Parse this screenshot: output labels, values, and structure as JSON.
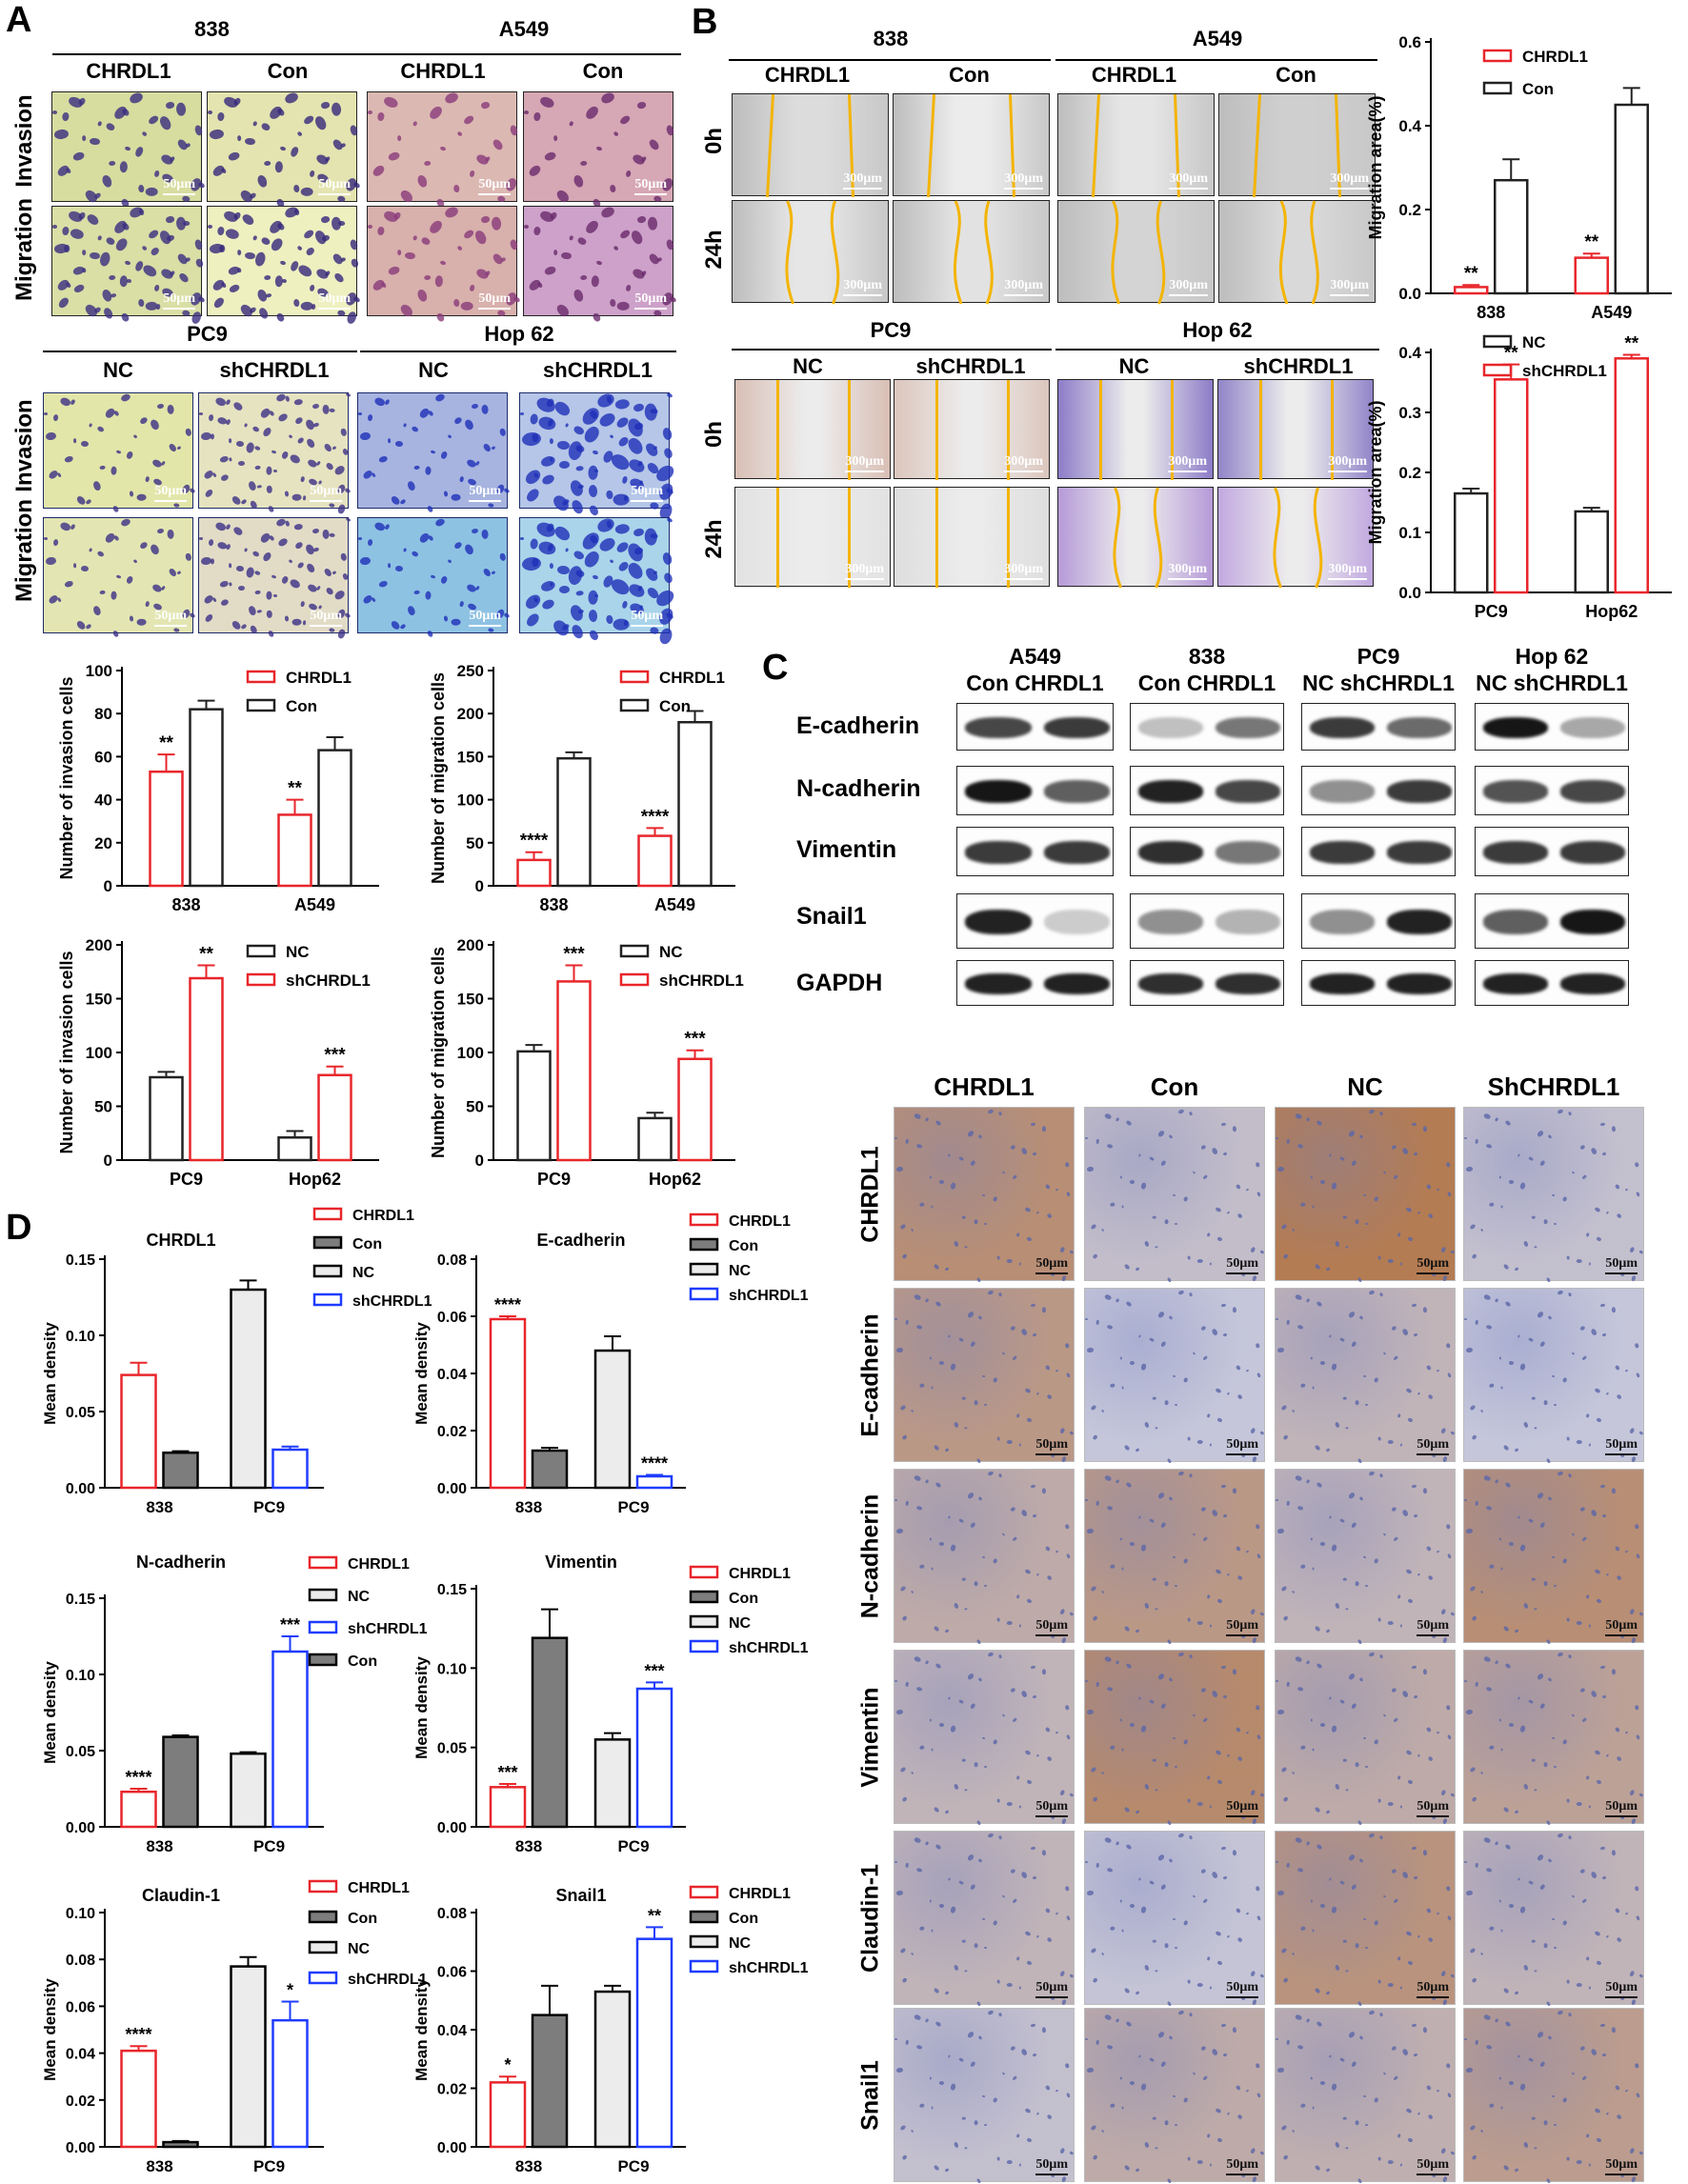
{
  "panels": {
    "a": "A",
    "b": "B",
    "c": "C",
    "d": "D"
  },
  "colors": {
    "red": "#e8262b",
    "black": "#222222",
    "gray": "#7d7d7d",
    "lightgray": "#ececec",
    "blue": "#1f3cff",
    "orange": "#f4b400"
  },
  "a": {
    "lines": [
      "838",
      "A549",
      "PC9",
      "Hop 62"
    ],
    "top_cols": [
      "CHRDL1",
      "Con",
      "CHRDL1",
      "Con"
    ],
    "bot_cols": [
      "NC",
      "shCHRDL1",
      "NC",
      "shCHRDL1"
    ],
    "rows": [
      "Invasion",
      "Migration",
      "Invasion",
      "Migration"
    ],
    "scale": "50μm"
  },
  "b": {
    "lines": [
      "838",
      "A549",
      "PC9",
      "Hop 62"
    ],
    "top_cols": [
      "CHRDL1",
      "Con",
      "CHRDL1",
      "Con"
    ],
    "bot_cols": [
      "NC",
      "shCHRDL1",
      "NC",
      "shCHRDL1"
    ],
    "rows": [
      "0h",
      "24h",
      "0h",
      "24h"
    ],
    "scale": "300μm"
  },
  "c": {
    "groups": [
      {
        "title": "A549",
        "sub": "Con CHRDL1"
      },
      {
        "title": "838",
        "sub": "Con CHRDL1"
      },
      {
        "title": "PC9",
        "sub": "NC shCHRDL1"
      },
      {
        "title": "Hop 62",
        "sub": "NC shCHRDL1"
      }
    ],
    "proteins": [
      "E-cadherin",
      "N-cadherin",
      "Vimentin",
      "Snail1",
      "GAPDH"
    ]
  },
  "ihc": {
    "cols": [
      "CHRDL1",
      "Con",
      "NC",
      "ShCHRDL1"
    ],
    "rows": [
      "CHRDL1",
      "E-cadherin",
      "N-cadherin",
      "Vimentin",
      "Claudin-1",
      "Snail1"
    ],
    "scale": "50μm"
  },
  "chart_data": [
    {
      "id": "b1",
      "type": "bar",
      "categories": [
        "838",
        "A549"
      ],
      "ylabel": "Migration area(%)",
      "ylim": [
        0,
        0.6
      ],
      "ticks": [
        0.0,
        0.2,
        0.4,
        0.6
      ],
      "tick_labels": [
        "0.0",
        "0.2",
        "0.4",
        "0.6"
      ],
      "legend_position": "top-left",
      "series": [
        {
          "name": "CHRDL1",
          "color": "red",
          "values": [
            0.015,
            0.085
          ],
          "errors": [
            0.005,
            0.01
          ],
          "sig": [
            "**",
            "**"
          ]
        },
        {
          "name": "Con",
          "color": "black",
          "values": [
            0.27,
            0.45
          ],
          "errors": [
            0.05,
            0.04
          ],
          "sig": [
            "",
            ""
          ]
        }
      ]
    },
    {
      "id": "b2",
      "type": "bar",
      "categories": [
        "PC9",
        "Hop62"
      ],
      "ylabel": "Migration area(%)",
      "ylim": [
        0,
        0.4
      ],
      "ticks": [
        0.0,
        0.1,
        0.2,
        0.3,
        0.4
      ],
      "tick_labels": [
        "0.0",
        "0.1",
        "0.2",
        "0.3",
        "0.4"
      ],
      "legend_position": "top-left",
      "series": [
        {
          "name": "NC",
          "color": "black",
          "values": [
            0.165,
            0.135
          ],
          "errors": [
            0.008,
            0.006
          ],
          "sig": [
            "",
            ""
          ]
        },
        {
          "name": "shCHRDL1",
          "color": "red",
          "values": [
            0.355,
            0.39
          ],
          "errors": [
            0.025,
            0.006
          ],
          "sig": [
            "**",
            "**"
          ]
        }
      ]
    },
    {
      "id": "a1",
      "type": "bar",
      "categories": [
        "838",
        "A549"
      ],
      "ylabel": "Number of invasion cells",
      "ylim": [
        0,
        100
      ],
      "ticks": [
        0,
        20,
        40,
        60,
        80,
        100
      ],
      "tick_labels": [
        "0",
        "20",
        "40",
        "60",
        "80",
        "100"
      ],
      "legend_position": "top-right",
      "series": [
        {
          "name": "CHRDL1",
          "color": "red",
          "values": [
            53,
            33
          ],
          "errors": [
            8,
            7
          ],
          "sig": [
            "**",
            "**"
          ]
        },
        {
          "name": "Con",
          "color": "black",
          "values": [
            82,
            63
          ],
          "errors": [
            4,
            6
          ],
          "sig": [
            "",
            ""
          ]
        }
      ]
    },
    {
      "id": "a2",
      "type": "bar",
      "categories": [
        "838",
        "A549"
      ],
      "ylabel": "Number of migration cells",
      "ylim": [
        0,
        250
      ],
      "ticks": [
        0,
        50,
        100,
        150,
        200,
        250
      ],
      "tick_labels": [
        "0",
        "50",
        "100",
        "150",
        "200",
        "250"
      ],
      "legend_position": "top-right",
      "series": [
        {
          "name": "CHRDL1",
          "color": "red",
          "values": [
            30,
            58
          ],
          "errors": [
            9,
            9
          ],
          "sig": [
            "****",
            "****"
          ]
        },
        {
          "name": "Con",
          "color": "black",
          "values": [
            148,
            190
          ],
          "errors": [
            7,
            13
          ],
          "sig": [
            "",
            ""
          ]
        }
      ]
    },
    {
      "id": "a3",
      "type": "bar",
      "categories": [
        "PC9",
        "Hop62"
      ],
      "ylabel": "Number of invasion cells",
      "ylim": [
        0,
        200
      ],
      "ticks": [
        0,
        50,
        100,
        150,
        200
      ],
      "tick_labels": [
        "0",
        "50",
        "100",
        "150",
        "200"
      ],
      "legend_position": "top-right",
      "series": [
        {
          "name": "NC",
          "color": "black",
          "values": [
            77,
            21
          ],
          "errors": [
            5,
            6
          ],
          "sig": [
            "",
            ""
          ]
        },
        {
          "name": "shCHRDL1",
          "color": "red",
          "values": [
            169,
            79
          ],
          "errors": [
            12,
            8
          ],
          "sig": [
            "**",
            "***"
          ]
        }
      ]
    },
    {
      "id": "a4",
      "type": "bar",
      "categories": [
        "PC9",
        "Hop62"
      ],
      "ylabel": "Number of migration cells",
      "ylim": [
        0,
        200
      ],
      "ticks": [
        0,
        50,
        100,
        150,
        200
      ],
      "tick_labels": [
        "0",
        "50",
        "100",
        "150",
        "200"
      ],
      "legend_position": "top-right",
      "series": [
        {
          "name": "NC",
          "color": "black",
          "values": [
            101,
            39
          ],
          "errors": [
            6,
            5
          ],
          "sig": [
            "",
            ""
          ]
        },
        {
          "name": "shCHRDL1",
          "color": "red",
          "values": [
            166,
            94
          ],
          "errors": [
            15,
            8
          ],
          "sig": [
            "***",
            "***"
          ]
        }
      ]
    },
    {
      "id": "d1",
      "type": "bar",
      "title": "CHRDL1",
      "categories": [
        "838",
        "PC9"
      ],
      "ylabel": "Mean density",
      "ylim": [
        0,
        0.15
      ],
      "ticks": [
        0,
        0.05,
        0.1,
        0.15
      ],
      "tick_labels": [
        "0.00",
        "0.05",
        "0.10",
        "0.15"
      ],
      "legend_position": "top-right",
      "series": [
        {
          "name": "CHRDL1",
          "color": "red",
          "slot": 0,
          "values": [
            0.074,
            null
          ],
          "errors": [
            0.008,
            null
          ],
          "sig": [
            "",
            ""
          ]
        },
        {
          "name": "Con",
          "color": "gray",
          "slot": 1,
          "values": [
            0.023,
            null
          ],
          "errors": [
            0.001,
            null
          ],
          "sig": [
            "",
            ""
          ]
        },
        {
          "name": "NC",
          "color": "lightgray",
          "slot": 0,
          "values": [
            null,
            0.13
          ],
          "errors": [
            null,
            0.006
          ],
          "sig": [
            "",
            ""
          ]
        },
        {
          "name": "shCHRDL1",
          "color": "blue",
          "slot": 1,
          "values": [
            null,
            0.025
          ],
          "errors": [
            null,
            0.002
          ],
          "sig": [
            "",
            ""
          ]
        }
      ]
    },
    {
      "id": "d2",
      "type": "bar",
      "title": "E-cadherin",
      "categories": [
        "838",
        "PC9"
      ],
      "ylabel": "Mean density",
      "ylim": [
        0,
        0.08
      ],
      "ticks": [
        0,
        0.02,
        0.04,
        0.06,
        0.08
      ],
      "tick_labels": [
        "0.00",
        "0.02",
        "0.04",
        "0.06",
        "0.08"
      ],
      "legend_position": "top-right",
      "series": [
        {
          "name": "CHRDL1",
          "color": "red",
          "slot": 0,
          "values": [
            0.059,
            null
          ],
          "errors": [
            0.001,
            null
          ],
          "sig": [
            "****",
            ""
          ]
        },
        {
          "name": "Con",
          "color": "gray",
          "slot": 1,
          "values": [
            0.013,
            null
          ],
          "errors": [
            0.001,
            null
          ],
          "sig": [
            "",
            ""
          ]
        },
        {
          "name": "NC",
          "color": "lightgray",
          "slot": 0,
          "values": [
            null,
            0.048
          ],
          "errors": [
            null,
            0.005
          ],
          "sig": [
            "",
            ""
          ]
        },
        {
          "name": "shCHRDL1",
          "color": "blue",
          "slot": 1,
          "values": [
            null,
            0.004
          ],
          "errors": [
            null,
            0.0005
          ],
          "sig": [
            "",
            "****"
          ]
        }
      ]
    },
    {
      "id": "d3",
      "type": "bar",
      "title": "N-cadherin",
      "categories": [
        "838",
        "PC9"
      ],
      "ylabel": "Mean density",
      "ylim": [
        0,
        0.15
      ],
      "ticks": [
        0,
        0.05,
        0.1,
        0.15
      ],
      "tick_labels": [
        "0.00",
        "0.05",
        "0.10",
        "0.15"
      ],
      "legend_position": "top-right",
      "series": [
        {
          "name": "CHRDL1",
          "color": "red",
          "slot": 0,
          "values": [
            0.023,
            null
          ],
          "errors": [
            0.002,
            null
          ],
          "sig": [
            "****",
            ""
          ]
        },
        {
          "name": "NC",
          "color": "lightgray",
          "slot": 0,
          "values": [
            null,
            0.048
          ],
          "errors": [
            null,
            0.001
          ],
          "sig": [
            "",
            ""
          ]
        },
        {
          "name": "shCHRDL1",
          "color": "blue",
          "slot": 1,
          "values": [
            null,
            0.115
          ],
          "errors": [
            null,
            0.01
          ],
          "sig": [
            "",
            "***"
          ]
        },
        {
          "name": "Con",
          "color": "gray",
          "slot": 1,
          "values": [
            0.059,
            null
          ],
          "errors": [
            0.001,
            null
          ],
          "sig": [
            "",
            ""
          ]
        }
      ]
    },
    {
      "id": "d4",
      "type": "bar",
      "title": "Vimentin",
      "categories": [
        "838",
        "PC9"
      ],
      "ylabel": "Mean density",
      "ylim": [
        0,
        0.15
      ],
      "ticks": [
        0,
        0.05,
        0.1,
        0.15
      ],
      "tick_labels": [
        "0.00",
        "0.05",
        "0.10",
        "0.15"
      ],
      "legend_position": "top-right",
      "series": [
        {
          "name": "CHRDL1",
          "color": "red",
          "slot": 0,
          "values": [
            0.025,
            null
          ],
          "errors": [
            0.002,
            null
          ],
          "sig": [
            "***",
            ""
          ]
        },
        {
          "name": "Con",
          "color": "gray",
          "slot": 1,
          "values": [
            0.119,
            null
          ],
          "errors": [
            0.018,
            null
          ],
          "sig": [
            "",
            ""
          ]
        },
        {
          "name": "NC",
          "color": "lightgray",
          "slot": 0,
          "values": [
            null,
            0.055
          ],
          "errors": [
            null,
            0.004
          ],
          "sig": [
            "",
            ""
          ]
        },
        {
          "name": "shCHRDL1",
          "color": "blue",
          "slot": 1,
          "values": [
            null,
            0.087
          ],
          "errors": [
            null,
            0.004
          ],
          "sig": [
            "",
            "***"
          ]
        }
      ]
    },
    {
      "id": "d5",
      "type": "bar",
      "title": "Claudin-1",
      "categories": [
        "838",
        "PC9"
      ],
      "ylabel": "Mean density",
      "ylim": [
        0,
        0.1
      ],
      "ticks": [
        0,
        0.02,
        0.04,
        0.06,
        0.08,
        0.1
      ],
      "tick_labels": [
        "0.00",
        "0.02",
        "0.04",
        "0.06",
        "0.08",
        "0.10"
      ],
      "legend_position": "top-right",
      "series": [
        {
          "name": "CHRDL1",
          "color": "red",
          "slot": 0,
          "values": [
            0.041,
            null
          ],
          "errors": [
            0.002,
            null
          ],
          "sig": [
            "****",
            ""
          ]
        },
        {
          "name": "Con",
          "color": "gray",
          "slot": 1,
          "values": [
            0.002,
            null
          ],
          "errors": [
            0.0005,
            null
          ],
          "sig": [
            "",
            ""
          ]
        },
        {
          "name": "NC",
          "color": "lightgray",
          "slot": 0,
          "values": [
            null,
            0.077
          ],
          "errors": [
            null,
            0.004
          ],
          "sig": [
            "",
            ""
          ]
        },
        {
          "name": "shCHRDL1",
          "color": "blue",
          "slot": 1,
          "values": [
            null,
            0.054
          ],
          "errors": [
            null,
            0.008
          ],
          "sig": [
            "",
            "*"
          ]
        }
      ]
    },
    {
      "id": "d6",
      "type": "bar",
      "title": "Snail1",
      "categories": [
        "838",
        "PC9"
      ],
      "ylabel": "Mean density",
      "ylim": [
        0,
        0.08
      ],
      "ticks": [
        0,
        0.02,
        0.04,
        0.06,
        0.08
      ],
      "tick_labels": [
        "0.00",
        "0.02",
        "0.04",
        "0.06",
        "0.08"
      ],
      "legend_position": "top-right",
      "series": [
        {
          "name": "CHRDL1",
          "color": "red",
          "slot": 0,
          "values": [
            0.022,
            null
          ],
          "errors": [
            0.002,
            null
          ],
          "sig": [
            "*",
            ""
          ]
        },
        {
          "name": "Con",
          "color": "gray",
          "slot": 1,
          "values": [
            0.045,
            null
          ],
          "errors": [
            0.01,
            null
          ],
          "sig": [
            "",
            ""
          ]
        },
        {
          "name": "NC",
          "color": "lightgray",
          "slot": 0,
          "values": [
            null,
            0.053
          ],
          "errors": [
            null,
            0.002
          ],
          "sig": [
            "",
            ""
          ]
        },
        {
          "name": "shCHRDL1",
          "color": "blue",
          "slot": 1,
          "values": [
            null,
            0.071
          ],
          "errors": [
            null,
            0.004
          ],
          "sig": [
            "",
            "**"
          ]
        }
      ]
    }
  ]
}
